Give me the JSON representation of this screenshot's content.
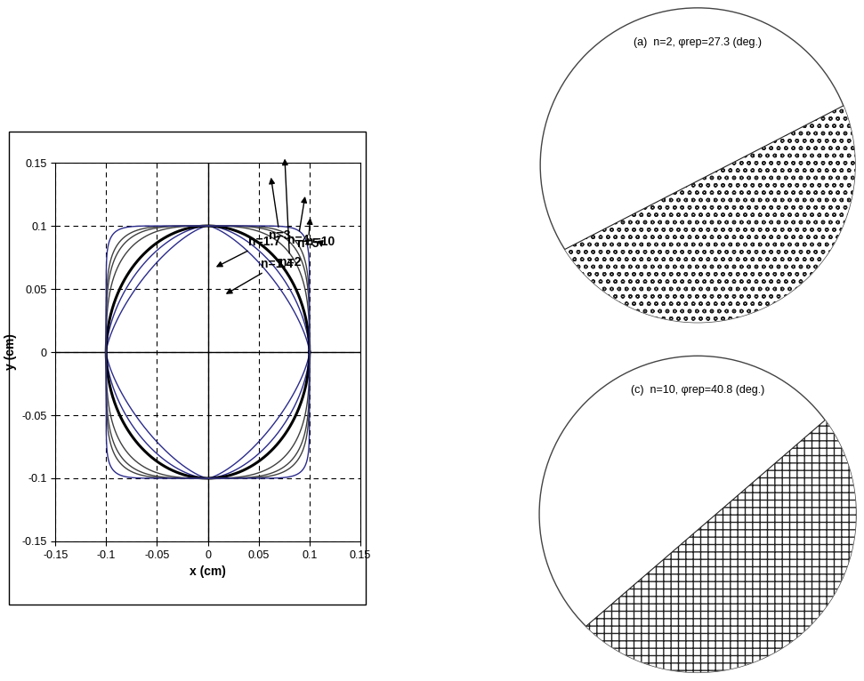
{
  "chart_data": [
    {
      "type": "line",
      "x_label": "x (cm)",
      "y_label": "y (cm)",
      "half_size": 0.1,
      "xlim": [
        -0.15,
        0.15
      ],
      "ylim": [
        -0.15,
        0.15
      ],
      "xticks": [
        -0.15,
        -0.1,
        -0.05,
        0,
        0.05,
        0.1,
        0.15
      ],
      "yticks": [
        -0.15,
        -0.1,
        -0.05,
        0,
        0.05,
        0.1,
        0.15
      ],
      "grid": true,
      "series": [
        {
          "name": "n=1.4",
          "n": 1.4,
          "color": "#2b2b8c"
        },
        {
          "name": "n=1.7",
          "n": 1.7,
          "color": "#2b2b8c"
        },
        {
          "name": "n=2",
          "n": 2,
          "color": "#000000"
        },
        {
          "name": "n=3",
          "n": 3,
          "color": "#404040"
        },
        {
          "name": "n=4",
          "n": 4,
          "color": "#404040"
        },
        {
          "name": "n=5",
          "n": 5,
          "color": "#404040"
        },
        {
          "name": "n=10",
          "n": 10,
          "color": "#2b2b8c"
        }
      ]
    },
    {
      "type": "drum",
      "title": "(a)  n=2, φrep=27.3 (deg.)",
      "n": 2,
      "phi_rep": 27.3
    },
    {
      "type": "drum",
      "title": "(c)  n=10, φrep=40.8 (deg.)",
      "n": 10,
      "phi_rep": 40.8
    }
  ]
}
